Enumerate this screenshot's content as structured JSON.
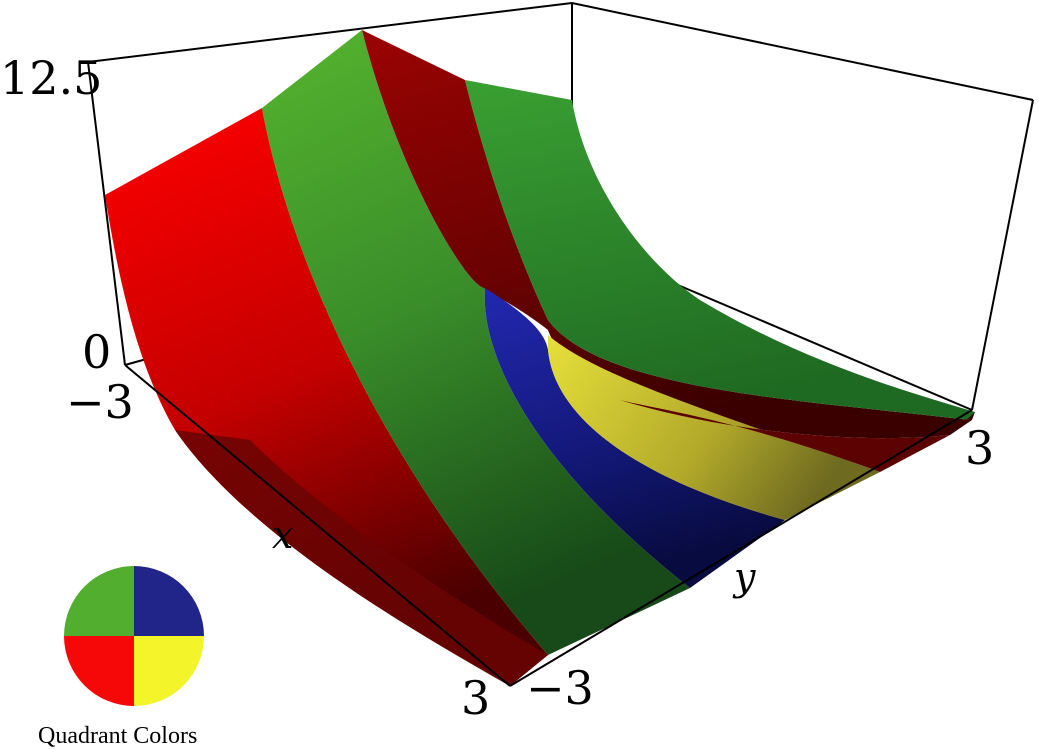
{
  "figure": {
    "z_ticks": [
      "12.5",
      "0"
    ],
    "x_ticks": [
      "−3",
      "3"
    ],
    "y_ticks": [
      "−3",
      "3"
    ],
    "x_label": "x",
    "y_label": "y",
    "legend": {
      "title": "Quadrant Colors",
      "quadrants": [
        {
          "name": "top-left",
          "color": "#52ae2e"
        },
        {
          "name": "top-right",
          "color": "#21258a"
        },
        {
          "name": "bottom-left",
          "color": "#f60808"
        },
        {
          "name": "bottom-right",
          "color": "#f4f42a"
        }
      ]
    },
    "surface_colors": {
      "red": "#e30000",
      "green": "#49a82f",
      "dark_red": "#8a0404",
      "blue": "#1b1f9a",
      "yellow": "#c9c42a"
    }
  }
}
